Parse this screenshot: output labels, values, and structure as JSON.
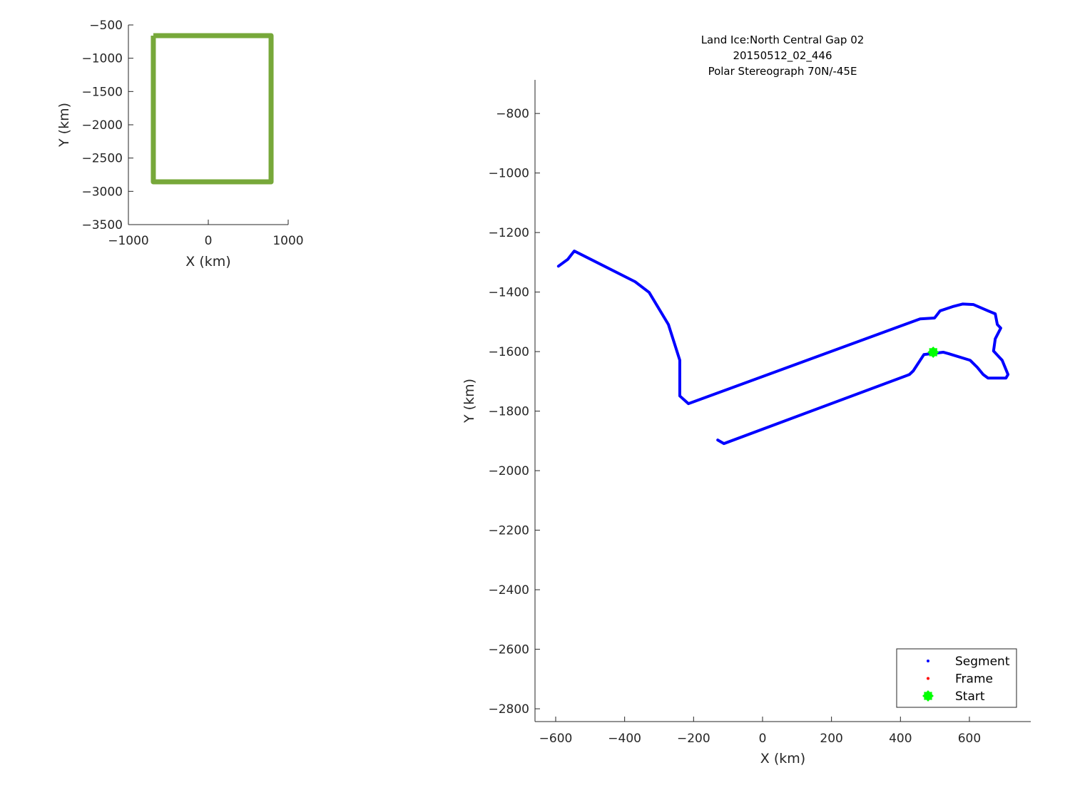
{
  "chart_data": [
    {
      "type": "line",
      "role": "overview",
      "title": "",
      "xlabel": "X (km)",
      "ylabel": "Y (km)",
      "xlim": [
        -1000,
        1000
      ],
      "ylim": [
        -3500,
        -500
      ],
      "xticks": [
        -1000,
        0,
        1000
      ],
      "xtick_labels": [
        "−1000",
        "0",
        "1000"
      ],
      "yticks": [
        -500,
        -1000,
        -1500,
        -2000,
        -2500,
        -3000,
        -3500
      ],
      "ytick_labels": [
        "−500",
        "−1000",
        "−1500",
        "−2000",
        "−2500",
        "−3000",
        "−3500"
      ],
      "grid": false,
      "series": [
        {
          "color": "#77a83a",
          "x": [
            -688,
            786,
            786,
            -688,
            -688
          ],
          "y": [
            -661,
            -661,
            -2857,
            -2857,
            -661
          ]
        }
      ]
    },
    {
      "type": "line",
      "role": "main",
      "title": [
        "Land Ice:North Central Gap 02",
        "20150512_02_446",
        "Polar Stereograph 70N/-45E"
      ],
      "xlabel": "X (km)",
      "ylabel": "Y (km)",
      "xlim": [
        -660,
        778
      ],
      "ylim": [
        -2843,
        -687
      ],
      "xticks": [
        -600,
        -400,
        -200,
        0,
        200,
        400,
        600
      ],
      "xtick_labels": [
        "−600",
        "−400",
        "−200",
        "0",
        "200",
        "400",
        "600"
      ],
      "yticks": [
        -800,
        -1000,
        -1200,
        -1400,
        -1600,
        -1800,
        -2000,
        -2200,
        -2400,
        -2600,
        -2800
      ],
      "ytick_labels": [
        "−800",
        "−1000",
        "−1200",
        "−1400",
        "−1600",
        "−1800",
        "−2000",
        "−2200",
        "−2400",
        "−2600",
        "−2800"
      ],
      "grid": false,
      "legend": {
        "placement": "bottom-right",
        "entries": [
          {
            "label": "Segment",
            "color": "#0000ff",
            "marker": "dot"
          },
          {
            "label": "Frame",
            "color": "#ff0000",
            "marker": "dot"
          },
          {
            "label": "Start",
            "color": "#00ff00",
            "marker": "star"
          }
        ]
      },
      "series": [
        {
          "name": "Segment",
          "color": "#0000ff",
          "x": [
            -592,
            -565,
            -546,
            -370,
            -329,
            -273,
            -240,
            -240,
            -215,
            457,
            499,
            515,
            551,
            581,
            612,
            654,
            675,
            681,
            691,
            675,
            670,
            695,
            712,
            706,
            654,
            640,
            623,
            602,
            540,
            524,
            468,
            437,
            426,
            -112,
            -130
          ],
          "y": [
            -1313,
            -1290,
            -1262,
            -1365,
            -1401,
            -1509,
            -1629,
            -1749,
            -1775,
            -1490,
            -1487,
            -1463,
            -1449,
            -1440,
            -1442,
            -1463,
            -1473,
            -1509,
            -1521,
            -1557,
            -1598,
            -1629,
            -1677,
            -1689,
            -1689,
            -1677,
            -1653,
            -1629,
            -1607,
            -1602,
            -1610,
            -1665,
            -1677,
            -1909,
            -1897
          ]
        }
      ],
      "start": {
        "name": "Start",
        "color": "#00ff00",
        "x": 495,
        "y": -1602
      }
    }
  ]
}
